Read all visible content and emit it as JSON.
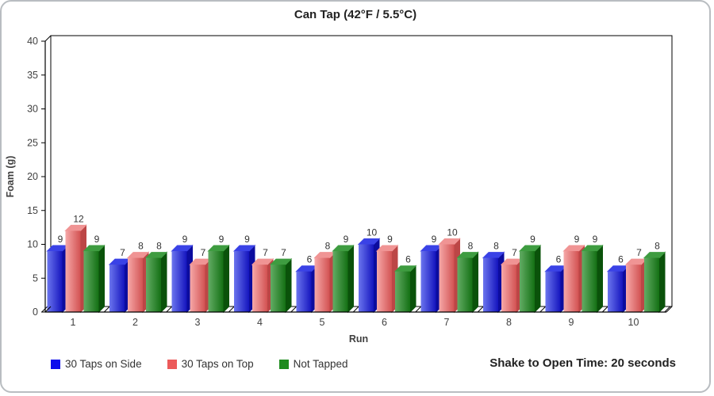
{
  "card": {
    "title": "Can Tap (42°F / 5.5°C)",
    "note": "Shake to Open Time: 20 seconds"
  },
  "chart_data": {
    "type": "bar",
    "bar_style": "3d",
    "title": "Can Tap (42°F / 5.5°C)",
    "xlabel": "Run",
    "ylabel": "Foam (g)",
    "ylim": [
      0,
      40
    ],
    "yticks": [
      0,
      5,
      10,
      15,
      20,
      25,
      30,
      35,
      40
    ],
    "categories": [
      "1",
      "2",
      "3",
      "4",
      "5",
      "6",
      "7",
      "8",
      "9",
      "10"
    ],
    "grid": false,
    "data_labels": true,
    "legend_position": "bottom-left",
    "annotation": "Shake to Open Time: 20 seconds",
    "series": [
      {
        "name": "30 Taps on Side",
        "values": [
          9,
          7,
          9,
          9,
          6,
          10,
          9,
          8,
          6,
          6
        ],
        "colors": {
          "legend": "#0b0bec",
          "front_light": "#6b75ee",
          "front_dark": "#1414be",
          "top": "#3a42e6",
          "side": "#0c0c9e"
        }
      },
      {
        "name": "30 Taps on Top",
        "values": [
          12,
          8,
          7,
          7,
          8,
          9,
          10,
          7,
          9,
          7
        ],
        "colors": {
          "legend": "#ec5a5a",
          "front_light": "#f6a8a8",
          "front_dark": "#d25252",
          "top": "#f09494",
          "side": "#bc4646"
        }
      },
      {
        "name": "Not Tapped",
        "values": [
          9,
          8,
          9,
          7,
          9,
          6,
          8,
          9,
          9,
          8
        ],
        "colors": {
          "legend": "#1d8b1d",
          "front_light": "#62ac64",
          "front_dark": "#147014",
          "top": "#3e9c40",
          "side": "#0a520a"
        }
      }
    ],
    "text_colors": {
      "axis_text": "#404040",
      "bar_label": "#333333",
      "frame": "#000000"
    }
  }
}
